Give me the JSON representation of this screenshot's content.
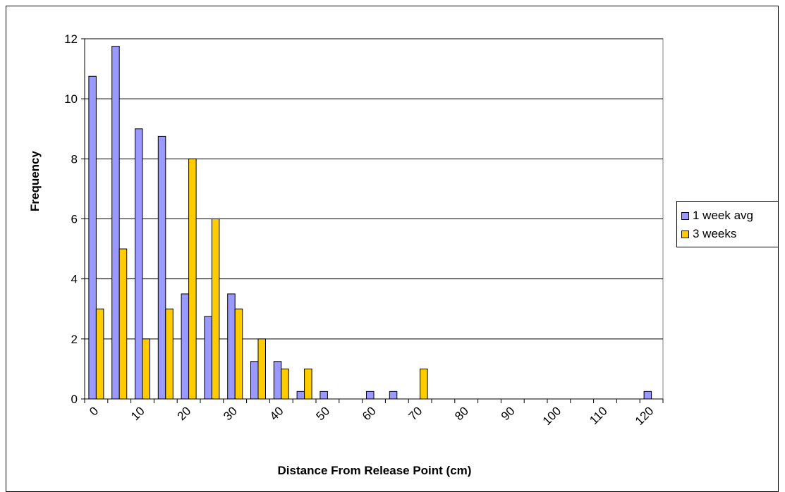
{
  "chart_data": {
    "type": "bar",
    "title": "",
    "xlabel": "Distance From Release Point (cm)",
    "ylabel": "Frequency",
    "ylim": [
      0,
      12
    ],
    "yticks": [
      0,
      2,
      4,
      6,
      8,
      10,
      12
    ],
    "grid": true,
    "legend_position": "right",
    "categories": [
      0,
      5,
      10,
      15,
      20,
      25,
      30,
      35,
      40,
      45,
      50,
      55,
      60,
      65,
      70,
      75,
      80,
      85,
      90,
      95,
      100,
      105,
      110,
      115,
      120
    ],
    "xtick_labels": [
      "0",
      "10",
      "20",
      "30",
      "40",
      "50",
      "60",
      "70",
      "80",
      "90",
      "100",
      "110",
      "120"
    ],
    "series": [
      {
        "name": "1 week avg",
        "color": "#9999ff",
        "values": [
          10.75,
          11.75,
          9,
          8.75,
          3.5,
          2.75,
          3.5,
          1.25,
          1.25,
          0.25,
          0.25,
          0,
          0.25,
          0.25,
          0,
          0,
          0,
          0,
          0,
          0,
          0,
          0,
          0,
          0,
          0.25
        ]
      },
      {
        "name": "3 weeks",
        "color": "#ffcc00",
        "values": [
          3,
          5,
          2,
          3,
          8,
          6,
          3,
          2,
          1,
          1,
          0,
          0,
          0,
          0,
          1,
          0,
          0,
          0,
          0,
          0,
          0,
          0,
          0,
          0,
          0
        ]
      }
    ]
  },
  "legend": {
    "items": [
      {
        "label": "1 week avg",
        "color": "#9999ff"
      },
      {
        "label": "3 weeks",
        "color": "#ffcc00"
      }
    ]
  }
}
